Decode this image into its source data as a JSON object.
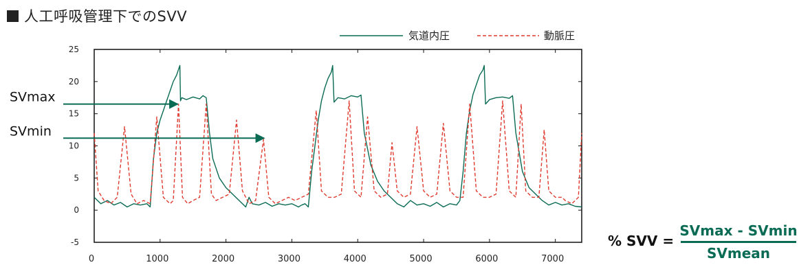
{
  "title": "人工呼吸管理下でのSVV",
  "formula": {
    "lhs": "% SVV =",
    "numerator": "SVmax - SVmin",
    "denominator": "SVmean"
  },
  "colors": {
    "airway": "#0a6b55",
    "arterial": "#e03a2f",
    "text": "#222222"
  },
  "chart_data": {
    "type": "line",
    "xlabel": "",
    "ylabel": "",
    "xlim": [
      0,
      7400
    ],
    "ylim": [
      -5,
      25
    ],
    "x_ticks": [
      "0",
      "1000",
      "2000",
      "3000",
      "4000",
      "5000",
      "6000",
      "7000"
    ],
    "y_ticks": [
      "-5",
      "0",
      "5",
      "10",
      "15",
      "20",
      "25"
    ],
    "legend_position": "top-right",
    "series": [
      {
        "name": "気道内圧",
        "style": "solid",
        "x": [
          0,
          100,
          200,
          300,
          400,
          500,
          600,
          700,
          800,
          850,
          900,
          950,
          1000,
          1050,
          1100,
          1150,
          1200,
          1250,
          1300,
          1310,
          1330,
          1400,
          1500,
          1600,
          1650,
          1700,
          1750,
          1800,
          1900,
          2000,
          2100,
          2200,
          2300,
          2350,
          2400,
          2500,
          2600,
          2700,
          2800,
          2900,
          3000,
          3100,
          3150,
          3200,
          3250,
          3300,
          3350,
          3400,
          3450,
          3500,
          3550,
          3600,
          3620,
          3640,
          3700,
          3800,
          3900,
          4000,
          4050,
          4100,
          4200,
          4300,
          4400,
          4500,
          4600,
          4700,
          4800,
          4900,
          5000,
          5100,
          5200,
          5300,
          5400,
          5500,
          5550,
          5600,
          5650,
          5700,
          5750,
          5800,
          5850,
          5900,
          5920,
          5940,
          6000,
          6100,
          6200,
          6300,
          6350,
          6400,
          6500,
          6600,
          6700,
          6800,
          6900,
          7000,
          7100,
          7200,
          7300,
          7400
        ],
        "y": [
          2,
          1,
          1.5,
          0.8,
          1.2,
          0.5,
          1,
          0.8,
          1,
          0.5,
          8,
          12,
          14,
          15.5,
          17,
          18.5,
          20,
          21,
          22.5,
          17,
          17.5,
          17.2,
          17.6,
          17.3,
          17.8,
          17.5,
          12,
          8,
          5,
          3.5,
          2.5,
          1.5,
          0.5,
          2,
          1,
          0.8,
          1.2,
          0.6,
          1,
          0.8,
          1,
          0.5,
          0.8,
          1,
          0.5,
          6,
          10,
          14,
          17,
          19,
          20.5,
          21.5,
          22.5,
          16.8,
          17.5,
          17.3,
          17.8,
          17.6,
          17.9,
          12,
          7,
          4.5,
          3,
          2,
          1,
          0.5,
          1.5,
          0.8,
          1,
          0.6,
          1.2,
          0.5,
          1,
          0.8,
          1.5,
          6,
          12,
          15.5,
          18,
          19.5,
          21,
          21.8,
          22.5,
          16.5,
          17.2,
          17.5,
          17.6,
          17.4,
          17.8,
          12,
          6,
          3.5,
          2.5,
          1.5,
          0.8,
          1.2,
          0.8,
          1,
          0.6,
          0.5
        ]
      },
      {
        "name": "動脈圧",
        "style": "dashed",
        "x": [
          0,
          60,
          150,
          250,
          350,
          460,
          560,
          650,
          750,
          850,
          950,
          1050,
          1150,
          1200,
          1280,
          1340,
          1420,
          1500,
          1600,
          1700,
          1780,
          1850,
          1950,
          2050,
          2160,
          2250,
          2350,
          2450,
          2570,
          2650,
          2750,
          2850,
          2950,
          3050,
          3150,
          3250,
          3370,
          3450,
          3550,
          3650,
          3750,
          3870,
          3950,
          4050,
          4150,
          4250,
          4350,
          4450,
          4520,
          4600,
          4700,
          4800,
          4900,
          5000,
          5100,
          5200,
          5300,
          5400,
          5500,
          5600,
          5700,
          5800,
          5900,
          6000,
          6100,
          6200,
          6300,
          6400,
          6480,
          6550,
          6650,
          6750,
          6830,
          6900,
          7000,
          7100,
          7150,
          7250,
          7350,
          7400
        ],
        "y": [
          12,
          3,
          1.5,
          1,
          2,
          13,
          2.5,
          1,
          1.5,
          1,
          14.5,
          2,
          1,
          1.5,
          16.5,
          2,
          1,
          1.5,
          2,
          16.5,
          2.5,
          1.5,
          2,
          2.5,
          14,
          3,
          1,
          1.5,
          11,
          2,
          1,
          1.5,
          2,
          1.5,
          2,
          2.5,
          15.5,
          3,
          2,
          2,
          2.5,
          17,
          3,
          2,
          14.5,
          3,
          2,
          2.5,
          10.5,
          3,
          2,
          2.5,
          13,
          3,
          2,
          2.5,
          13.5,
          3,
          2,
          2,
          16.5,
          3,
          2,
          2,
          2.5,
          17,
          3,
          2,
          16.5,
          3,
          2,
          2,
          12.5,
          3,
          2,
          2,
          1.5,
          1,
          2,
          12
        ]
      }
    ],
    "annotations": [
      {
        "label": "SVmax",
        "y": 16.5,
        "x_end": 1270
      },
      {
        "label": "SVmin",
        "y": 11.2,
        "x_end": 2580
      }
    ]
  }
}
